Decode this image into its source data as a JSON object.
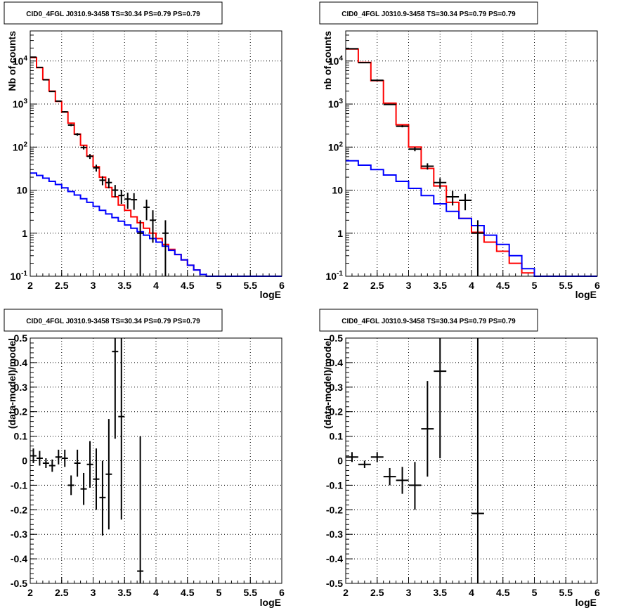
{
  "panels": [
    {
      "id": "tl",
      "title": "CID0_4FGL J0310.9-3458 TS=30.34 PS=0.79 PS=0.79",
      "xlabel": "logE",
      "ylabel": "Nb of counts"
    },
    {
      "id": "tr",
      "title": "CID0_4FGL J0310.9-3458 TS=30.34 PS=0.79 PS=0.79",
      "xlabel": "logE",
      "ylabel": "nb of counts"
    },
    {
      "id": "bl",
      "title": "CID0_4FGL J0310.9-3458 TS=30.34 PS=0.79 PS=0.79",
      "xlabel": "logE",
      "ylabel": "(data-model)/model"
    },
    {
      "id": "br",
      "title": "CID0_4FGL J0310.9-3458 TS=30.34 PS=0.79 PS=0.79",
      "xlabel": "logE",
      "ylabel": "(data-model)/model"
    }
  ],
  "chart_data": [
    {
      "type": "line",
      "title": "CID0_4FGL J0310.9-3458 TS=30.34 PS=0.79 PS=0.79",
      "xlabel": "logE",
      "ylabel": "Nb of counts",
      "xlim": [
        2,
        6
      ],
      "ylim": [
        0.1,
        50000
      ],
      "yscale": "log",
      "grid": true,
      "xticks": [
        "2",
        "2.5",
        "3",
        "3.5",
        "4",
        "4.5",
        "5",
        "5.5",
        "6"
      ],
      "yticks": [
        {
          "v": 0.1,
          "base": "10",
          "exp": "-1"
        },
        {
          "v": 1,
          "label": "1"
        },
        {
          "v": 10,
          "label": "10"
        },
        {
          "v": 100,
          "base": "10",
          "exp": "2"
        },
        {
          "v": 1000,
          "base": "10",
          "exp": "3"
        },
        {
          "v": 10000,
          "base": "10",
          "exp": "4"
        }
      ],
      "bin_edges": [
        2.0,
        2.1,
        2.2,
        2.3,
        2.4,
        2.5,
        2.6,
        2.7,
        2.8,
        2.9,
        3.0,
        3.1,
        3.2,
        3.3,
        3.4,
        3.5,
        3.6,
        3.7,
        3.8,
        3.9,
        4.0,
        4.1,
        4.2,
        4.3,
        4.4,
        4.5,
        4.6,
        4.7,
        4.8,
        4.9,
        5.0,
        5.1,
        5.2,
        5.3,
        5.4,
        5.5,
        5.6,
        5.7,
        5.8,
        5.9,
        6.0
      ],
      "series": [
        {
          "kind": "step",
          "color": "#ff0000",
          "values": [
            12000,
            7000,
            3700,
            2000,
            1150,
            650,
            360,
            200,
            110,
            62,
            35,
            20,
            11.5,
            7,
            4.5,
            3.4,
            2.4,
            1.75,
            1.3,
            1.0,
            0.75,
            0.55,
            0.42,
            0.32,
            0.24,
            0.18,
            0.14,
            0.11,
            0.1,
            0.1,
            0.1,
            0.1,
            0.1,
            0.1,
            0.1,
            0.1,
            0.1,
            0.1,
            0.1,
            0.1
          ]
        },
        {
          "kind": "step",
          "color": "#0000ff",
          "values": [
            25,
            22,
            19,
            16,
            13.5,
            11.3,
            9.3,
            7.7,
            6.3,
            5.2,
            4.2,
            3.4,
            2.8,
            2.3,
            1.9,
            1.55,
            1.3,
            1.08,
            0.9,
            0.75,
            0.62,
            0.5,
            0.4,
            0.32,
            0.24,
            0.18,
            0.14,
            0.11,
            0.1,
            0.1,
            0.1,
            0.1,
            0.1,
            0.1,
            0.1,
            0.1,
            0.1,
            0.1,
            0.1,
            0.1
          ]
        },
        {
          "kind": "errorbar",
          "color": "#000000",
          "points": [
            {
              "x": 2.05,
              "y": 12300,
              "xerr": 0.05,
              "ylo": 12000,
              "yhi": 12600
            },
            {
              "x": 2.15,
              "y": 7100,
              "xerr": 0.05,
              "ylo": 6900,
              "yhi": 7300
            },
            {
              "x": 2.25,
              "y": 3660,
              "xerr": 0.05,
              "ylo": 3600,
              "yhi": 3720
            },
            {
              "x": 2.35,
              "y": 1960,
              "xerr": 0.05,
              "ylo": 1920,
              "yhi": 2000
            },
            {
              "x": 2.45,
              "y": 1170,
              "xerr": 0.05,
              "ylo": 1135,
              "yhi": 1205
            },
            {
              "x": 2.55,
              "y": 660,
              "xerr": 0.05,
              "ylo": 635,
              "yhi": 685
            },
            {
              "x": 2.65,
              "y": 325,
              "xerr": 0.05,
              "ylo": 307,
              "yhi": 343
            },
            {
              "x": 2.75,
              "y": 198,
              "xerr": 0.05,
              "ylo": 184,
              "yhi": 212
            },
            {
              "x": 2.85,
              "y": 98,
              "xerr": 0.05,
              "ylo": 88,
              "yhi": 108
            },
            {
              "x": 2.95,
              "y": 61,
              "xerr": 0.05,
              "ylo": 53,
              "yhi": 69
            },
            {
              "x": 3.05,
              "y": 33,
              "xerr": 0.05,
              "ylo": 27,
              "yhi": 39
            },
            {
              "x": 3.15,
              "y": 17,
              "xerr": 0.05,
              "ylo": 13,
              "yhi": 21
            },
            {
              "x": 3.25,
              "y": 15,
              "xerr": 0.05,
              "ylo": 11,
              "yhi": 19
            },
            {
              "x": 3.35,
              "y": 10,
              "xerr": 0.05,
              "ylo": 6.8,
              "yhi": 13.2
            },
            {
              "x": 3.45,
              "y": 7.5,
              "xerr": 0.05,
              "ylo": 4.8,
              "yhi": 10.2
            },
            {
              "x": 3.55,
              "y": 6.2,
              "xerr": 0.05,
              "ylo": 3.7,
              "yhi": 8.7
            },
            {
              "x": 3.65,
              "y": 6.0,
              "xerr": 0.05,
              "ylo": 3.5,
              "yhi": 8.5
            },
            {
              "x": 3.75,
              "y": 1.0,
              "xerr": 0.05,
              "ylo": 0.1,
              "yhi": 2.0
            },
            {
              "x": 3.85,
              "y": 4.0,
              "xerr": 0.05,
              "ylo": 2.0,
              "yhi": 6.0
            },
            {
              "x": 3.95,
              "y": 2.0,
              "xerr": 0.05,
              "ylo": 0.6,
              "yhi": 3.4
            },
            {
              "x": 4.15,
              "y": 1.0,
              "xerr": 0.05,
              "ylo": 0.1,
              "yhi": 2.0
            }
          ]
        }
      ]
    },
    {
      "type": "line",
      "title": "CID0_4FGL J0310.9-3458 TS=30.34 PS=0.79 PS=0.79",
      "xlabel": "logE",
      "ylabel": "nb of counts",
      "xlim": [
        2,
        6
      ],
      "ylim": [
        0.1,
        50000
      ],
      "yscale": "log",
      "grid": true,
      "xticks": [
        "2",
        "2.5",
        "3",
        "3.5",
        "4",
        "4.5",
        "5",
        "5.5",
        "6"
      ],
      "yticks": [
        {
          "v": 0.1,
          "base": "10",
          "exp": "-1"
        },
        {
          "v": 1,
          "label": "1"
        },
        {
          "v": 10,
          "label": "10"
        },
        {
          "v": 100,
          "base": "10",
          "exp": "2"
        },
        {
          "v": 1000,
          "base": "10",
          "exp": "3"
        },
        {
          "v": 10000,
          "base": "10",
          "exp": "4"
        }
      ],
      "bin_edges": [
        2.0,
        2.2,
        2.4,
        2.6,
        2.8,
        3.0,
        3.2,
        3.4,
        3.6,
        3.8,
        4.0,
        4.2,
        4.4,
        4.6,
        4.8,
        5.0,
        5.2,
        5.4,
        5.6,
        5.8,
        6.0
      ],
      "series": [
        {
          "kind": "step",
          "color": "#ff0000",
          "values": [
            19000,
            9300,
            3500,
            1050,
            330,
            100,
            32,
            12.5,
            5.2,
            2.2,
            1.05,
            0.62,
            0.38,
            0.2,
            0.12,
            0.1,
            0.1,
            0.1,
            0.1,
            0.1
          ]
        },
        {
          "kind": "step",
          "color": "#0000ff",
          "values": [
            48,
            38,
            30,
            22.5,
            16,
            11,
            7.5,
            4.8,
            3.2,
            2.2,
            1.5,
            0.9,
            0.55,
            0.3,
            0.15,
            0.1,
            0.1,
            0.1,
            0.1,
            0.1
          ]
        },
        {
          "kind": "errorbar",
          "color": "#000000",
          "points": [
            {
              "x": 2.1,
              "y": 19300,
              "xerr": 0.1,
              "ylo": 19000,
              "yhi": 19600
            },
            {
              "x": 2.3,
              "y": 9150,
              "xerr": 0.1,
              "ylo": 8950,
              "yhi": 9350
            },
            {
              "x": 2.5,
              "y": 3560,
              "xerr": 0.1,
              "ylo": 3490,
              "yhi": 3630
            },
            {
              "x": 2.7,
              "y": 980,
              "xerr": 0.1,
              "ylo": 950,
              "yhi": 1010
            },
            {
              "x": 2.9,
              "y": 305,
              "xerr": 0.1,
              "ylo": 288,
              "yhi": 322
            },
            {
              "x": 3.1,
              "y": 90,
              "xerr": 0.1,
              "ylo": 80,
              "yhi": 100
            },
            {
              "x": 3.3,
              "y": 36,
              "xerr": 0.1,
              "ylo": 30,
              "yhi": 42
            },
            {
              "x": 3.5,
              "y": 15,
              "xerr": 0.1,
              "ylo": 11,
              "yhi": 19
            },
            {
              "x": 3.7,
              "y": 7.0,
              "xerr": 0.1,
              "ylo": 4.4,
              "yhi": 9.6
            },
            {
              "x": 3.9,
              "y": 5.8,
              "xerr": 0.1,
              "ylo": 3.4,
              "yhi": 8.2
            },
            {
              "x": 4.1,
              "y": 1.0,
              "xerr": 0.1,
              "ylo": 0.1,
              "yhi": 2.0
            }
          ]
        }
      ]
    },
    {
      "type": "scatter",
      "title": "CID0_4FGL J0310.9-3458 TS=30.34 PS=0.79 PS=0.79",
      "xlabel": "logE",
      "ylabel": "(data-model)/model",
      "xlim": [
        2,
        6
      ],
      "ylim": [
        -0.5,
        0.5
      ],
      "grid": true,
      "xticks": [
        "2",
        "2.5",
        "3",
        "3.5",
        "4",
        "4.5",
        "5",
        "5.5",
        "6"
      ],
      "yticks": [
        "-0.5",
        "-0.4",
        "-0.3",
        "-0.2",
        "-0.1",
        "0",
        "0.1",
        "0.2",
        "0.3",
        "0.4",
        "0.5"
      ],
      "series": [
        {
          "kind": "errorbar",
          "color": "#000000",
          "points": [
            {
              "x": 2.05,
              "y": 0.02,
              "xerr": 0.05,
              "ylo": -0.01,
              "yhi": 0.05
            },
            {
              "x": 2.15,
              "y": 0.01,
              "xerr": 0.05,
              "ylo": -0.02,
              "yhi": 0.04
            },
            {
              "x": 2.25,
              "y": -0.01,
              "xerr": 0.05,
              "ylo": -0.03,
              "yhi": 0.01
            },
            {
              "x": 2.35,
              "y": -0.02,
              "xerr": 0.05,
              "ylo": -0.045,
              "yhi": 0.005
            },
            {
              "x": 2.45,
              "y": 0.015,
              "xerr": 0.05,
              "ylo": -0.015,
              "yhi": 0.045
            },
            {
              "x": 2.55,
              "y": 0.01,
              "xerr": 0.05,
              "ylo": -0.025,
              "yhi": 0.045
            },
            {
              "x": 2.65,
              "y": -0.1,
              "xerr": 0.05,
              "ylo": -0.14,
              "yhi": -0.06
            },
            {
              "x": 2.75,
              "y": -0.01,
              "xerr": 0.05,
              "ylo": -0.065,
              "yhi": 0.045
            },
            {
              "x": 2.85,
              "y": -0.115,
              "xerr": 0.05,
              "ylo": -0.18,
              "yhi": -0.05
            },
            {
              "x": 2.95,
              "y": -0.015,
              "xerr": 0.05,
              "ylo": -0.11,
              "yhi": 0.08
            },
            {
              "x": 3.05,
              "y": -0.075,
              "xerr": 0.05,
              "ylo": -0.2,
              "yhi": 0.05
            },
            {
              "x": 3.15,
              "y": -0.15,
              "xerr": 0.05,
              "ylo": -0.305,
              "yhi": 0.0
            },
            {
              "x": 3.25,
              "y": -0.055,
              "xerr": 0.05,
              "ylo": -0.28,
              "yhi": 0.17
            },
            {
              "x": 3.35,
              "y": 0.445,
              "xerr": 0.05,
              "ylo": 0.09,
              "yhi": 0.5
            },
            {
              "x": 3.45,
              "y": 0.18,
              "xerr": 0.05,
              "ylo": -0.24,
              "yhi": 0.5
            },
            {
              "x": 3.75,
              "y": -0.45,
              "xerr": 0.05,
              "ylo": -0.5,
              "yhi": 0.1
            }
          ]
        }
      ]
    },
    {
      "type": "scatter",
      "title": "CID0_4FGL J0310.9-3458 TS=30.34 PS=0.79 PS=0.79",
      "xlabel": "logE",
      "ylabel": "(data-model)/model",
      "xlim": [
        2,
        6
      ],
      "ylim": [
        -0.5,
        0.5
      ],
      "grid": true,
      "xticks": [
        "2",
        "2.5",
        "3",
        "3.5",
        "4",
        "4.5",
        "5",
        "5.5",
        "6"
      ],
      "yticks": [
        "-0.5",
        "-0.4",
        "-0.3",
        "-0.2",
        "-0.1",
        "0",
        "0.1",
        "0.2",
        "0.3",
        "0.4",
        "0.5"
      ],
      "series": [
        {
          "kind": "errorbar",
          "color": "#000000",
          "points": [
            {
              "x": 2.1,
              "y": 0.015,
              "xerr": 0.1,
              "ylo": -0.005,
              "yhi": 0.035
            },
            {
              "x": 2.3,
              "y": -0.015,
              "xerr": 0.1,
              "ylo": -0.03,
              "yhi": 0.0
            },
            {
              "x": 2.5,
              "y": 0.015,
              "xerr": 0.1,
              "ylo": -0.005,
              "yhi": 0.035
            },
            {
              "x": 2.7,
              "y": -0.065,
              "xerr": 0.1,
              "ylo": -0.1,
              "yhi": -0.03
            },
            {
              "x": 2.9,
              "y": -0.08,
              "xerr": 0.1,
              "ylo": -0.135,
              "yhi": -0.025
            },
            {
              "x": 3.1,
              "y": -0.1,
              "xerr": 0.1,
              "ylo": -0.2,
              "yhi": -0.005
            },
            {
              "x": 3.3,
              "y": 0.13,
              "xerr": 0.1,
              "ylo": -0.065,
              "yhi": 0.325
            },
            {
              "x": 3.5,
              "y": 0.365,
              "xerr": 0.1,
              "ylo": 0.01,
              "yhi": 0.5
            },
            {
              "x": 4.1,
              "y": -0.215,
              "xerr": 0.1,
              "ylo": -0.5,
              "yhi": 0.5
            }
          ]
        }
      ]
    }
  ]
}
